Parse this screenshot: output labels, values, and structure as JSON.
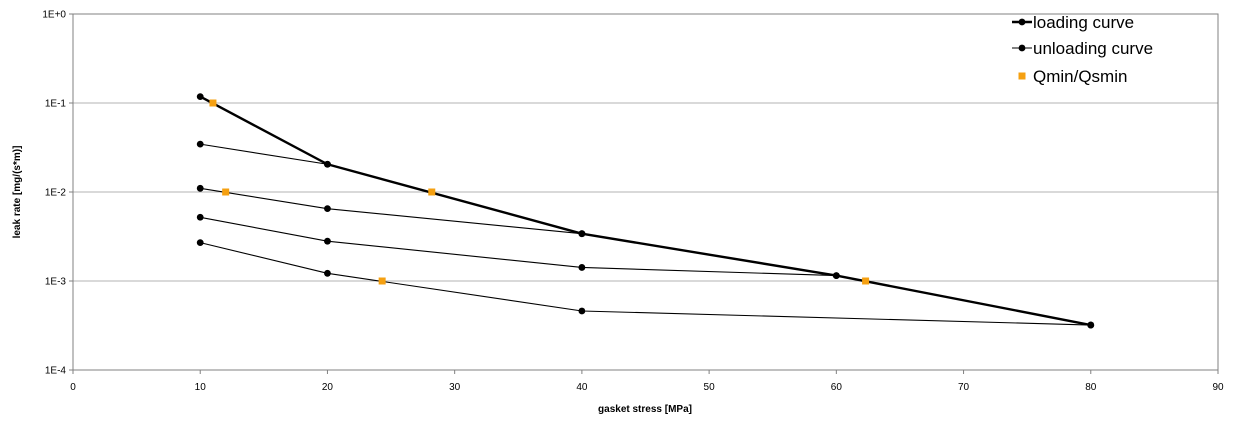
{
  "chart_data": {
    "type": "scatter",
    "xlabel": "gasket stress [MPa]",
    "ylabel": "leak rate [mg/(s*m)]",
    "xlim": [
      0,
      90
    ],
    "ylim": [
      0.0001,
      1
    ],
    "yscale": "log",
    "x_ticks": [
      0,
      10,
      20,
      30,
      40,
      50,
      60,
      70,
      80,
      90
    ],
    "x_tick_labels": [
      "0",
      "10",
      "20",
      "30",
      "40",
      "50",
      "60",
      "70",
      "80",
      "90"
    ],
    "y_ticks": [
      0.0001,
      0.001,
      0.01,
      0.1,
      1
    ],
    "y_tick_labels": [
      "1E-4",
      "1E-3",
      "1E-2",
      "1E-1",
      "1E+0"
    ],
    "grid": "horizontal",
    "legend_position": "top-right",
    "legend": [
      "loading curve",
      "unloading curve",
      "Qmin/Qsmin"
    ],
    "colors": {
      "curve": "#000000",
      "qmin": "#f5a011",
      "grid": "#b3b3b3"
    },
    "series": [
      {
        "name": "loading curve",
        "style": "line-bold",
        "x": [
          10,
          20,
          40,
          60,
          80
        ],
        "y": [
          0.118,
          0.0205,
          0.0034,
          0.00115,
          0.00032
        ]
      },
      {
        "name": "unloading curve",
        "style": "line",
        "x": [
          10,
          20
        ],
        "y": [
          0.0345,
          0.0205
        ]
      },
      {
        "style": "line",
        "x": [
          10,
          20,
          40
        ],
        "y": [
          0.011,
          0.0065,
          0.0034
        ]
      },
      {
        "style": "line",
        "x": [
          10,
          20,
          40,
          60
        ],
        "y": [
          0.0052,
          0.0028,
          0.00142,
          0.00115
        ]
      },
      {
        "style": "line",
        "x": [
          10,
          20,
          40,
          80
        ],
        "y": [
          0.0027,
          0.00122,
          0.00046,
          0.00032
        ]
      },
      {
        "name": "Qmin/Qsmin",
        "style": "marker-square",
        "x": [
          11,
          12,
          28.2,
          24.3,
          62.3
        ],
        "y": [
          0.1,
          0.01,
          0.01,
          0.001,
          0.001
        ]
      }
    ]
  }
}
